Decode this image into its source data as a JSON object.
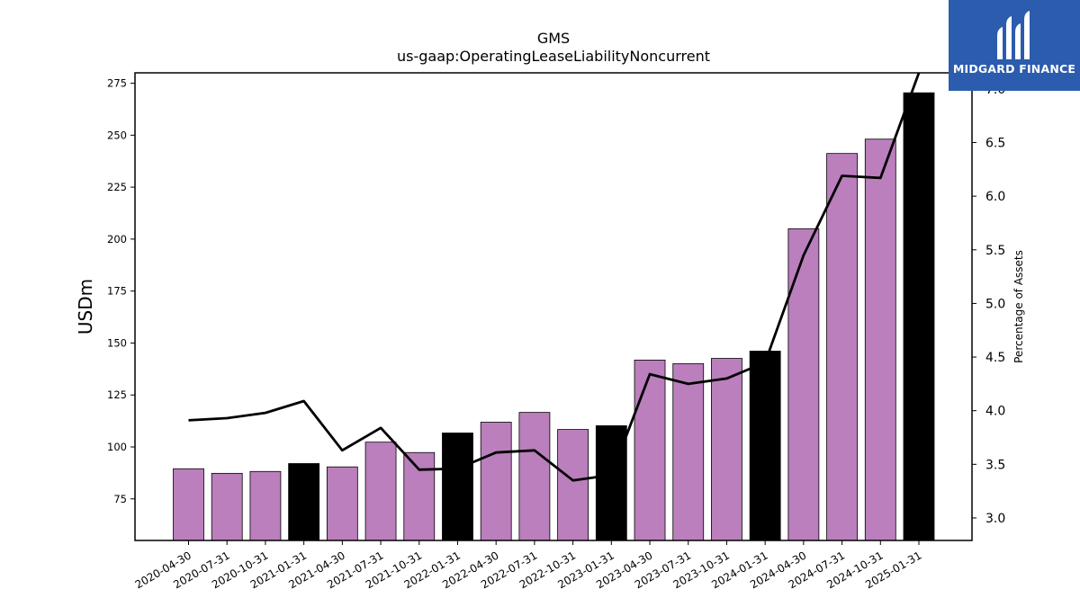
{
  "chart_data": {
    "type": "bar",
    "title": "GMS",
    "subtitle": "us-gaap:OperatingLeaseLiabilityNoncurrent",
    "ylabel": "USDm",
    "y2label": "Percentage of Assets",
    "ylim": [
      55,
      280
    ],
    "y2lim": [
      2.79,
      7.15
    ],
    "yticks": [
      75,
      100,
      125,
      150,
      175,
      200,
      225,
      250,
      275
    ],
    "y2ticks": [
      3.0,
      3.5,
      4.0,
      4.5,
      5.0,
      5.5,
      6.0,
      6.5,
      7.0
    ],
    "categories": [
      "2020-04-30",
      "2020-07-31",
      "2020-10-31",
      "2021-01-31",
      "2021-04-30",
      "2021-07-31",
      "2021-10-31",
      "2022-01-31",
      "2022-04-30",
      "2022-07-31",
      "2022-10-31",
      "2023-01-31",
      "2023-04-30",
      "2023-07-31",
      "2023-10-31",
      "2024-01-31",
      "2024-04-30",
      "2024-07-31",
      "2024-10-31",
      "2025-01-31"
    ],
    "values": [
      89.5,
      87.3,
      88.2,
      92.0,
      90.4,
      102.3,
      97.3,
      106.7,
      111.9,
      116.6,
      108.4,
      110.2,
      141.8,
      140.1,
      142.6,
      146.1,
      205.0,
      241.2,
      248.1,
      270.4
    ],
    "fiscal_year_end": [
      false,
      false,
      false,
      true,
      false,
      false,
      false,
      true,
      false,
      false,
      false,
      true,
      false,
      false,
      false,
      true,
      false,
      false,
      false,
      true
    ],
    "line_series": {
      "axis": "right",
      "values": [
        3.91,
        3.93,
        3.98,
        4.09,
        3.63,
        3.84,
        3.45,
        3.46,
        3.61,
        3.63,
        3.35,
        3.4,
        4.34,
        4.25,
        4.3,
        4.45,
        5.45,
        6.19,
        6.17,
        7.15
      ]
    },
    "colors": {
      "bar": "#bb7fbd",
      "bar_fiscal_year": "#000000",
      "line": "#000000"
    },
    "grid": false
  },
  "brand": {
    "name": "MIDGARD FINANCE",
    "icon": "midgard-logo-icon",
    "color": "#2b5cad"
  }
}
